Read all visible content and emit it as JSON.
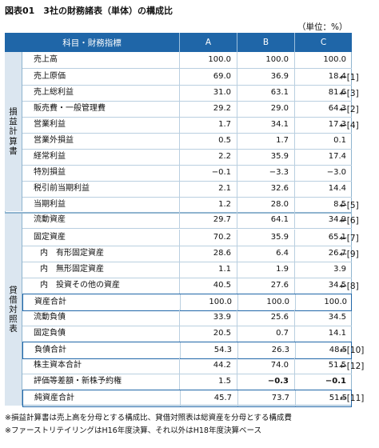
{
  "title": "図表01　3社の財務諸表（単体）の構成比",
  "unit": "（単位：%）",
  "columns": [
    "科目・財務指標",
    "A",
    "B",
    "C"
  ],
  "sections": {
    "pl": [
      "損",
      "益",
      "計",
      "算",
      "書"
    ],
    "bs": [
      "貸",
      "借",
      "対",
      "照",
      "表"
    ]
  },
  "rows": [
    {
      "label": "売上高",
      "a": "100.0",
      "b": "100.0",
      "c": "100.0",
      "ref": ""
    },
    {
      "label": "売上原価",
      "a": "69.0",
      "b": "36.9",
      "c": "18.4",
      "ref": "←[1]"
    },
    {
      "label": "売上総利益",
      "a": "31.0",
      "b": "63.1",
      "c": "81.6",
      "ref": "←[3]"
    },
    {
      "label": "販売費・一般管理費",
      "a": "29.2",
      "b": "29.0",
      "c": "64.3",
      "ref": "←[2]"
    },
    {
      "label": "営業利益",
      "a": "1.7",
      "b": "34.1",
      "c": "17.3",
      "ref": "←[4]"
    },
    {
      "label": "営業外損益",
      "a": "0.5",
      "b": "1.7",
      "c": "0.1",
      "ref": ""
    },
    {
      "label": "経常利益",
      "a": "2.2",
      "b": "35.9",
      "c": "17.4",
      "ref": ""
    },
    {
      "label": "特別損益",
      "a": "−0.1",
      "b": "−3.3",
      "c": "−3.0",
      "ref": ""
    },
    {
      "label": "税引前当期利益",
      "a": "2.1",
      "b": "32.6",
      "c": "14.4",
      "ref": ""
    },
    {
      "label": "当期利益",
      "a": "1.2",
      "b": "28.0",
      "c": "8.5",
      "ref": "←[5]"
    },
    {
      "label": "流動資産",
      "a": "29.7",
      "b": "64.1",
      "c": "34.9",
      "ref": "←[6]"
    },
    {
      "label": "固定資産",
      "a": "70.2",
      "b": "35.9",
      "c": "65.1",
      "ref": "←[7]"
    },
    {
      "label": "内　有形固定資産",
      "a": "28.6",
      "b": "6.4",
      "c": "26.7",
      "ref": "←[9]"
    },
    {
      "label": "内　無形固定資産",
      "a": "1.1",
      "b": "1.9",
      "c": "3.9",
      "ref": ""
    },
    {
      "label": "内　投資その他の資産",
      "a": "40.5",
      "b": "27.6",
      "c": "34.5",
      "ref": "←[8]"
    },
    {
      "label": "資産合計",
      "a": "100.0",
      "b": "100.0",
      "c": "100.0",
      "ref": ""
    },
    {
      "label": "流動負債",
      "a": "33.9",
      "b": "25.6",
      "c": "34.5",
      "ref": ""
    },
    {
      "label": "固定負債",
      "a": "20.5",
      "b": "0.7",
      "c": "14.1",
      "ref": ""
    },
    {
      "label": "負債合計",
      "a": "54.3",
      "b": "26.3",
      "c": "48.5",
      "ref": "←[10]"
    },
    {
      "label": "株主資本合計",
      "a": "44.2",
      "b": "74.0",
      "c": "51.5",
      "ref": "←[12]"
    },
    {
      "label": "評価等差額・新株予約権",
      "a": "1.5",
      "b": "−0.3",
      "c": "−0.1",
      "ref": ""
    },
    {
      "label": "純資産合計",
      "a": "45.7",
      "b": "73.7",
      "c": "51.5",
      "ref": "←[11]"
    }
  ],
  "notes": [
    "※損益計算書は売上高を分母とする構成比、貸借対照表は総資産を分母とする構成費",
    "※ファーストリテイリングはH16年度決算、それ以外はH18年度決算ベース"
  ]
}
